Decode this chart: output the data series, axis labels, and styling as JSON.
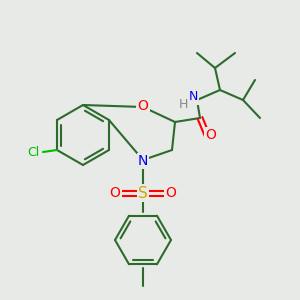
{
  "background_color": "#e8eae8",
  "bond_color": "#2d6b2d",
  "atom_colors": {
    "O": "#ff0000",
    "N": "#0000ee",
    "S": "#ccaa00",
    "Cl": "#00bb00",
    "H": "#888888",
    "C": "#2d6b2d"
  },
  "figsize": [
    3.0,
    3.0
  ],
  "dpi": 100
}
